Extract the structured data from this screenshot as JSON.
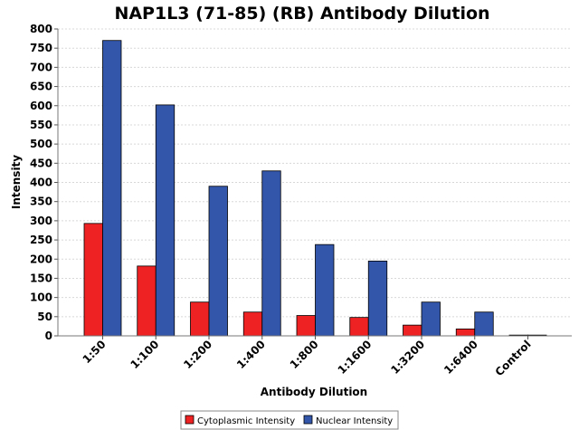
{
  "chart_data": {
    "type": "bar",
    "title": "NAP1L3 (71-85) (RB) Antibody Dilution",
    "xlabel": "Antibody Dilution",
    "ylabel": "Intensity",
    "ylim": [
      0,
      800
    ],
    "yticks": [
      0,
      50,
      100,
      150,
      200,
      250,
      300,
      350,
      400,
      450,
      500,
      550,
      600,
      650,
      700,
      750,
      800
    ],
    "categories": [
      "1:50",
      "1:100",
      "1:200",
      "1:400",
      "1:800",
      "1:1600",
      "1:3200",
      "1:6400",
      "Control"
    ],
    "series": [
      {
        "name": "Cytoplasmic Intensity",
        "color": "#ee2222",
        "values": [
          293,
          182,
          88,
          62,
          53,
          48,
          28,
          18,
          2
        ]
      },
      {
        "name": "Nuclear Intensity",
        "color": "#3355aa",
        "values": [
          770,
          602,
          390,
          430,
          238,
          195,
          88,
          62,
          2
        ]
      }
    ],
    "grid": true,
    "legend": "bottom-center"
  }
}
